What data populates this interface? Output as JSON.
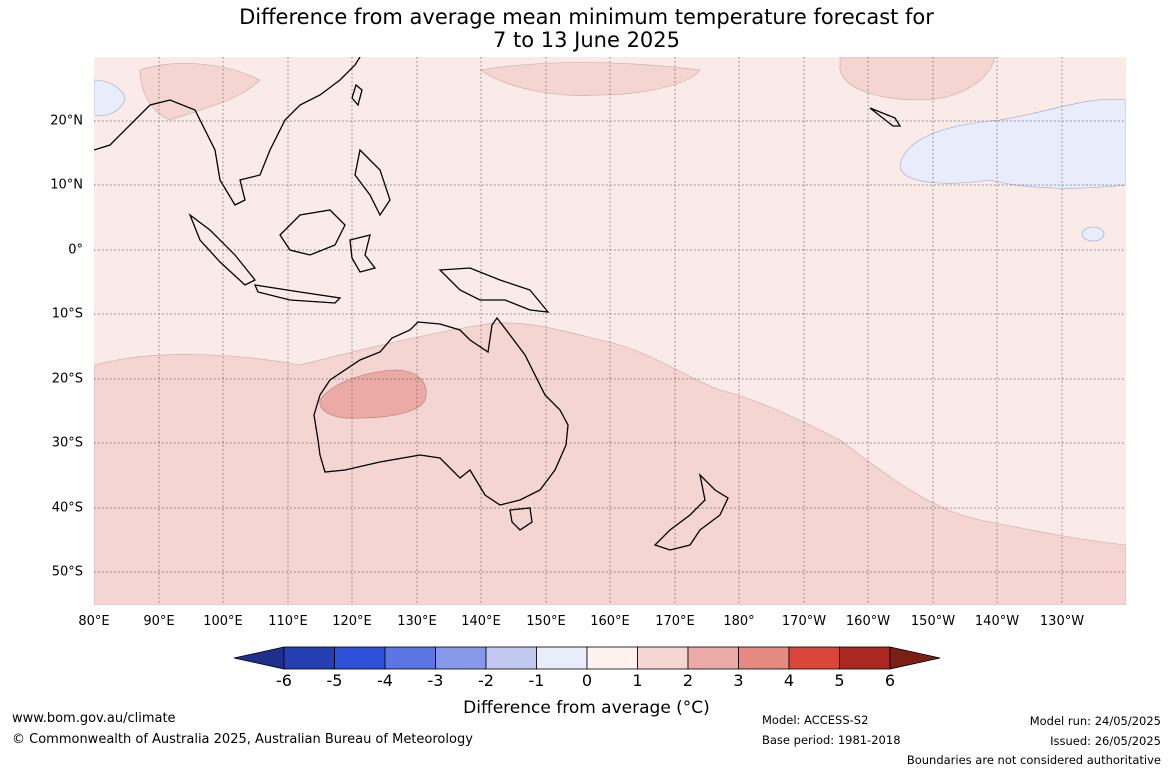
{
  "title": {
    "line1": "Difference from average mean minimum temperature forecast for",
    "line2": "7 to 13 June 2025"
  },
  "map": {
    "longitude_labels": [
      "80°E",
      "90°E",
      "100°E",
      "110°E",
      "120°E",
      "130°E",
      "140°E",
      "150°E",
      "160°E",
      "170°E",
      "180°",
      "170°W",
      "160°W",
      "150°W",
      "140°W",
      "130°W"
    ],
    "latitude_labels": [
      "20°N",
      "10°N",
      "0°",
      "10°S",
      "20°S",
      "30°S",
      "40°S",
      "50°S"
    ],
    "field_colors": {
      "near_zero_warm": "#fbebe8",
      "warm_1_2": "#f5d5d1",
      "warm_2_3": "#ebaaa6",
      "cool_0_1": "#e9ecfa",
      "land_outline": "#000000",
      "grid": "#666666"
    }
  },
  "colorbar": {
    "ticks": [
      "-6",
      "-5",
      "-4",
      "-3",
      "-2",
      "-1",
      "0",
      "1",
      "2",
      "3",
      "4",
      "5",
      "6"
    ],
    "colors": [
      "#1e2f8e",
      "#253fb3",
      "#2f51d9",
      "#5b75e3",
      "#8598e9",
      "#c1c9f1",
      "#e9ecfa",
      "#fdf2ef",
      "#f5d5d1",
      "#ebaaa6",
      "#e58a80",
      "#db463a",
      "#ab2820",
      "#7a1e16"
    ],
    "label": "Difference from average (°C)"
  },
  "footer": {
    "url": "www.bom.gov.au/climate",
    "copyright": "© Commonwealth of Australia 2025, Australian Bureau of Meteorology",
    "model": "Model: ACCESS-S2",
    "base_period": "Base period: 1981-2018",
    "model_run": "Model run: 24/05/2025",
    "issued": "Issued: 26/05/2025",
    "disclaimer": "Boundaries are not considered authoritative"
  }
}
